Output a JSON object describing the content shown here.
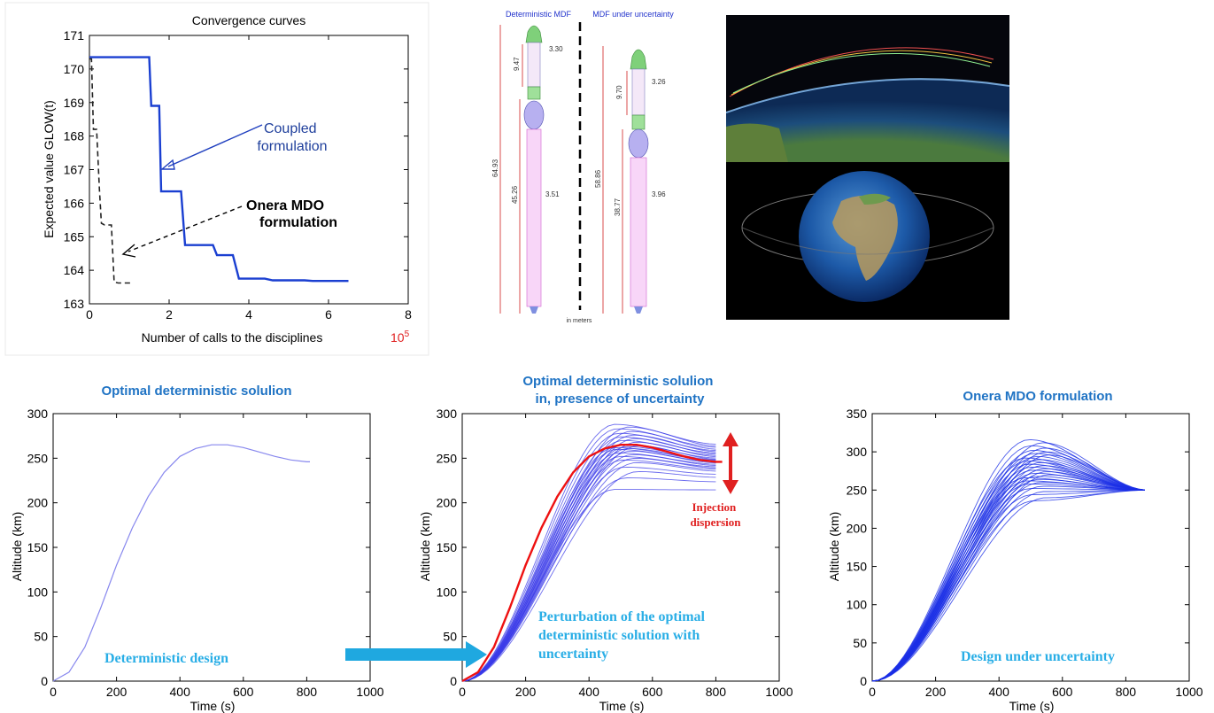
{
  "chart_data": [
    {
      "id": "convergence",
      "type": "line",
      "title": "Convergence curves",
      "xlabel": "Number of calls to the disciplines",
      "x_multiplier_label": "10^5",
      "ylabel": "Expected value GLOW(t)",
      "xlim": [
        0,
        8
      ],
      "ylim": [
        163,
        171
      ],
      "xticks": [
        0,
        2,
        4,
        6,
        8
      ],
      "yticks": [
        163,
        164,
        165,
        166,
        167,
        168,
        169,
        170,
        171
      ],
      "series": [
        {
          "name": "Coupled formulation",
          "style": "solid",
          "color": "#1a3fd1",
          "x": [
            0,
            1.5,
            1.55,
            1.75,
            1.8,
            2.3,
            2.4,
            3.1,
            3.2,
            3.6,
            3.75,
            4.4,
            4.6,
            5.4,
            5.6,
            6.5
          ],
          "y": [
            170.35,
            170.35,
            168.9,
            168.9,
            166.35,
            166.35,
            164.75,
            164.75,
            164.45,
            164.45,
            163.75,
            163.75,
            163.7,
            163.7,
            163.68,
            163.68
          ]
        },
        {
          "name": "Onera MDO formulation",
          "style": "dashed",
          "color": "#222222",
          "x": [
            0,
            0.05,
            0.1,
            0.18,
            0.25,
            0.3,
            0.38,
            0.55,
            0.62,
            0.72,
            1.1
          ],
          "y": [
            170.3,
            170.3,
            168.2,
            168.2,
            166.4,
            165.4,
            165.35,
            165.35,
            163.65,
            163.62,
            163.62
          ]
        }
      ],
      "annotations": [
        {
          "text_lines": [
            "Coupled",
            "formulation"
          ],
          "bold": false,
          "color": "#1f3f9c"
        },
        {
          "text_lines": [
            "Onera MDO",
            "formulation"
          ],
          "bold": true,
          "color": "#000000"
        }
      ]
    },
    {
      "id": "deterministic",
      "type": "line",
      "title": "Optimal deterministic solulion",
      "xlabel": "Time (s)",
      "ylabel": "Altitude (km)",
      "xlim": [
        0,
        1000
      ],
      "ylim": [
        0,
        300
      ],
      "xticks": [
        0,
        200,
        400,
        600,
        800,
        1000
      ],
      "yticks": [
        0,
        50,
        100,
        150,
        200,
        250,
        300
      ],
      "annotation": "Deterministic  design",
      "series": [
        {
          "color": "#8888ee",
          "x": [
            0,
            50,
            100,
            150,
            200,
            250,
            300,
            350,
            400,
            450,
            500,
            550,
            600,
            650,
            700,
            750,
            800,
            810
          ],
          "y": [
            0,
            10,
            38,
            82,
            130,
            172,
            207,
            234,
            252,
            261,
            265,
            265,
            262,
            257,
            252,
            248,
            246,
            246
          ]
        }
      ]
    },
    {
      "id": "uncertainty",
      "type": "line",
      "title_lines": [
        "Optimal deterministic solulion",
        "in, presence of uncertainty"
      ],
      "xlabel": "Time (s)",
      "ylabel": "Altitude (km)",
      "xlim": [
        0,
        1000
      ],
      "ylim": [
        0,
        300
      ],
      "xticks": [
        0,
        200,
        400,
        600,
        800,
        1000
      ],
      "yticks": [
        0,
        50,
        100,
        150,
        200,
        250,
        300
      ],
      "annotation_lines": [
        "Perturbation of the optimal",
        "deterministic solution with",
        "uncertainty"
      ],
      "dispersion_label": [
        "Injection",
        "dispersion"
      ],
      "nominal": {
        "color": "#ee1111",
        "x": [
          0,
          50,
          100,
          150,
          200,
          250,
          300,
          350,
          400,
          450,
          500,
          550,
          600,
          650,
          700,
          750,
          800,
          820
        ],
        "y": [
          0,
          10,
          38,
          82,
          130,
          172,
          207,
          234,
          252,
          261,
          265,
          265,
          262,
          257,
          252,
          248,
          246,
          246
        ]
      },
      "dispersion_peaks": [
        215,
        228,
        235,
        240,
        245,
        248,
        250,
        252,
        254,
        256,
        258,
        260,
        261,
        262,
        263,
        264,
        266,
        268,
        270,
        272,
        274,
        276,
        278,
        280,
        283,
        285,
        288
      ]
    },
    {
      "id": "onera",
      "type": "line",
      "title": "Onera MDO formulation",
      "xlabel": "Time (s)",
      "ylabel": "Altitude (km)",
      "xlim": [
        0,
        1000
      ],
      "ylim": [
        0,
        350
      ],
      "xticks": [
        0,
        200,
        400,
        600,
        800,
        1000
      ],
      "yticks": [
        0,
        50,
        100,
        150,
        200,
        250,
        300,
        350
      ],
      "annotation": "Design under uncertainty",
      "final_value": 250,
      "dispersion_peaks": [
        236,
        240,
        244,
        248,
        252,
        255,
        258,
        260,
        262,
        264,
        266,
        268,
        270,
        272,
        274,
        276,
        278,
        280,
        282,
        284,
        286,
        288,
        290,
        292,
        294,
        296,
        298,
        300,
        302,
        305,
        308,
        312,
        316
      ]
    }
  ],
  "rocket": {
    "left_label": "Deterministic MDF",
    "right_label": "MDF under uncertainty",
    "units_label": "in meters",
    "left_dims": [
      "3.30",
      "9.47",
      "64.93",
      "45.26",
      "3.51"
    ],
    "right_dims": [
      "3.26",
      "9.70",
      "58.86",
      "38.77",
      "3.96"
    ]
  }
}
